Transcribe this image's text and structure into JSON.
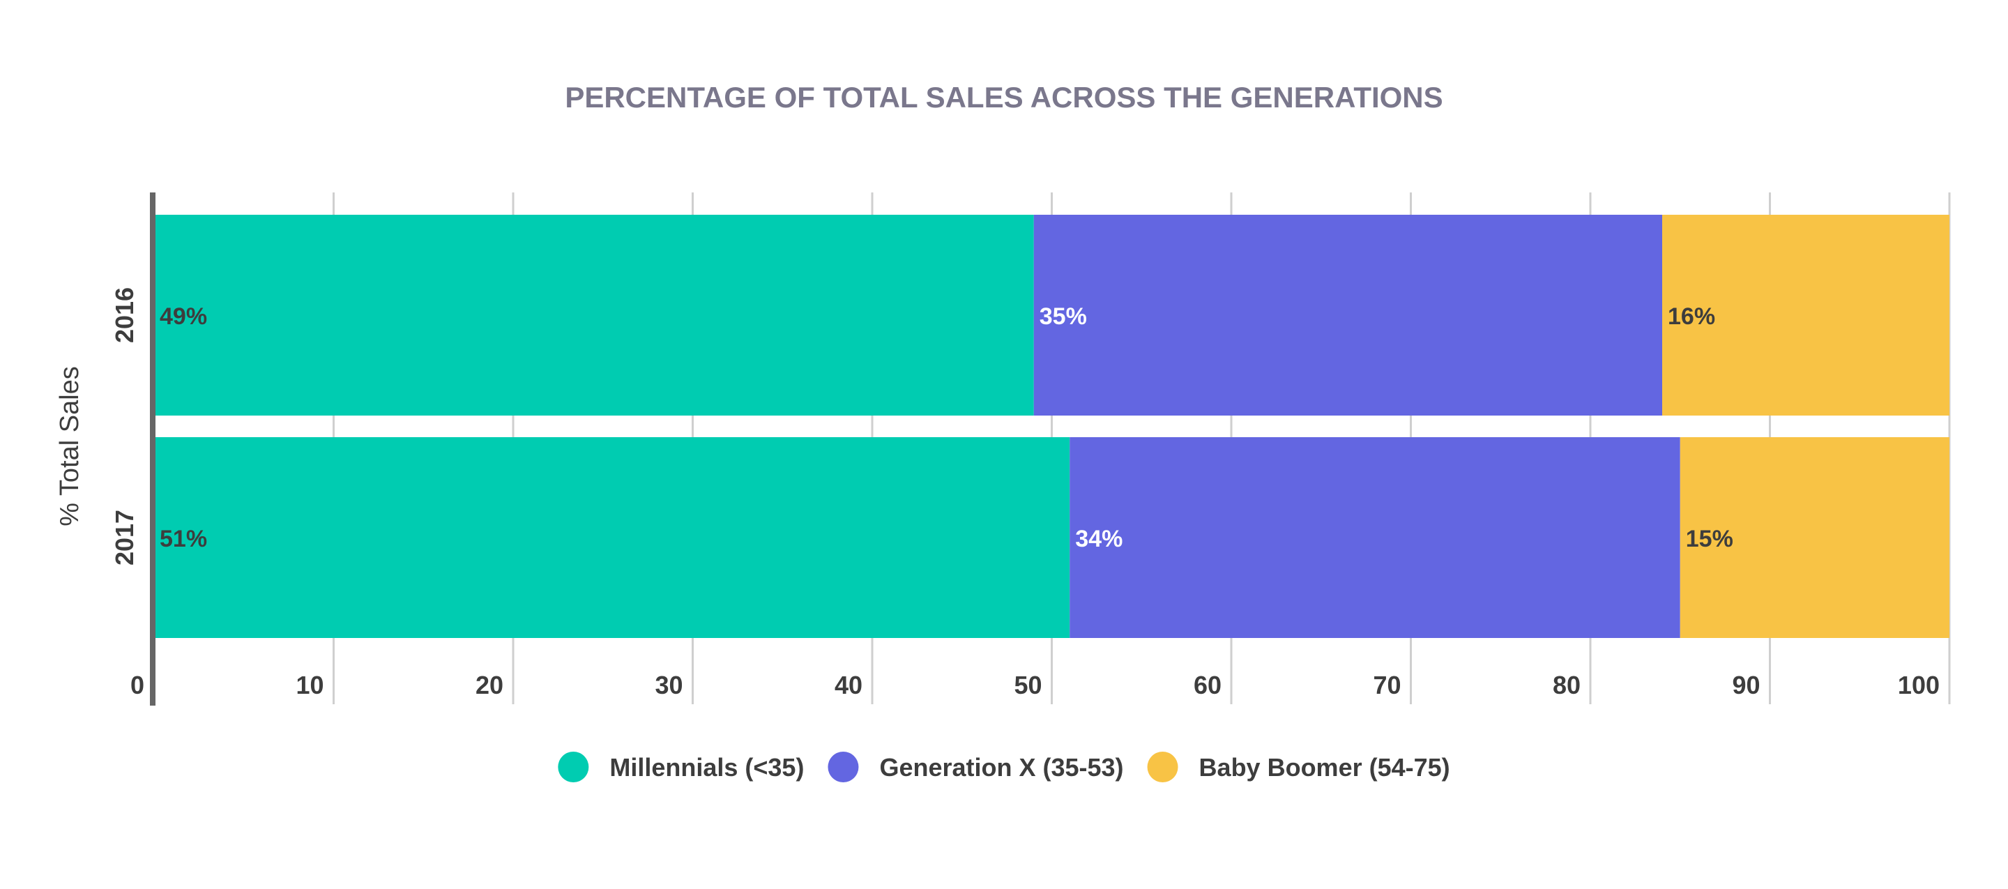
{
  "chart_data": {
    "type": "bar",
    "orientation": "horizontal",
    "stacked": true,
    "title": "PERCENTAGE OF TOTAL SALES ACROSS THE GENERATIONS",
    "ylabel": "% Total Sales",
    "xlabel": "",
    "categories": [
      "2016",
      "2017"
    ],
    "series": [
      {
        "name": "Millennials (<35)",
        "values": [
          49,
          51
        ],
        "labels": [
          "49%",
          "51%"
        ],
        "color": "#00CCB1",
        "label_color": "#3D3D3D"
      },
      {
        "name": "Generation X (35-53)",
        "values": [
          35,
          34
        ],
        "labels": [
          "35%",
          "34%"
        ],
        "color": "#6366E1",
        "label_color": "#FFFFFF"
      },
      {
        "name": "Baby Boomer (54-75)",
        "values": [
          16,
          15
        ],
        "labels": [
          "16%",
          "15%"
        ],
        "color": "#F8C345",
        "label_color": "#3D3D3D"
      }
    ],
    "xlim": [
      0,
      100
    ],
    "xticks": [
      0,
      10,
      20,
      30,
      40,
      50,
      60,
      70,
      80,
      90,
      100
    ],
    "grid": true,
    "legend_position": "bottom"
  },
  "colors": {
    "title": "#7A778C",
    "axis_text": "#3D3D3D",
    "grid": "#CFCFCF",
    "axis_line": "#666666"
  }
}
